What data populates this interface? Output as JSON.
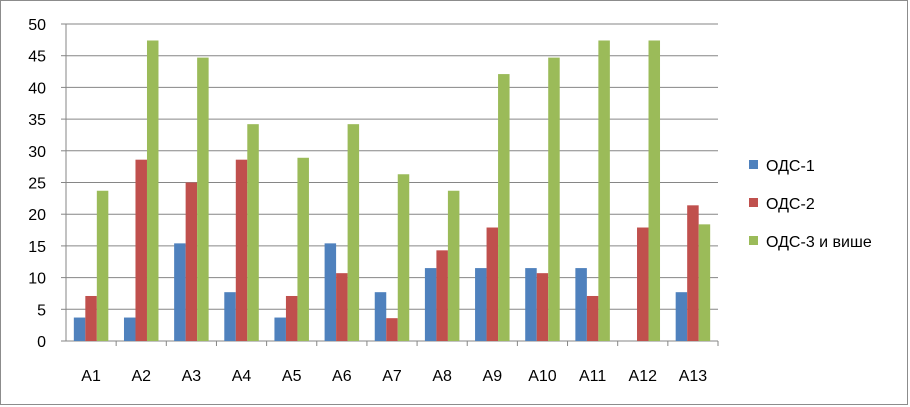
{
  "chart_data": {
    "type": "bar",
    "title": "",
    "xlabel": "",
    "ylabel": "",
    "ylim": [
      0,
      50
    ],
    "ytick_step": 5,
    "grid": true,
    "legend_position": "right",
    "categories": [
      "A1",
      "A2",
      "A3",
      "A4",
      "A5",
      "A6",
      "A7",
      "A8",
      "A9",
      "A10",
      "A11",
      "A12",
      "A13"
    ],
    "yticks": [
      "0",
      "5",
      "10",
      "15",
      "20",
      "25",
      "30",
      "35",
      "40",
      "45",
      "50"
    ],
    "series": [
      {
        "name": "ОДС-1",
        "color": "#4F81BD",
        "values": [
          3.7,
          3.7,
          15.4,
          7.7,
          3.7,
          15.4,
          7.7,
          11.5,
          11.5,
          11.5,
          11.5,
          0,
          7.7
        ]
      },
      {
        "name": "ОДС-2",
        "color": "#C0504D",
        "values": [
          7.1,
          28.6,
          25.0,
          28.6,
          7.1,
          10.7,
          3.6,
          14.3,
          17.9,
          10.7,
          7.1,
          17.9,
          21.4
        ]
      },
      {
        "name": "ОДС-3 и више",
        "color": "#9BBB59",
        "values": [
          23.7,
          47.4,
          44.7,
          34.2,
          28.9,
          34.2,
          26.3,
          23.7,
          42.1,
          44.7,
          47.4,
          47.4,
          18.4
        ]
      }
    ]
  }
}
